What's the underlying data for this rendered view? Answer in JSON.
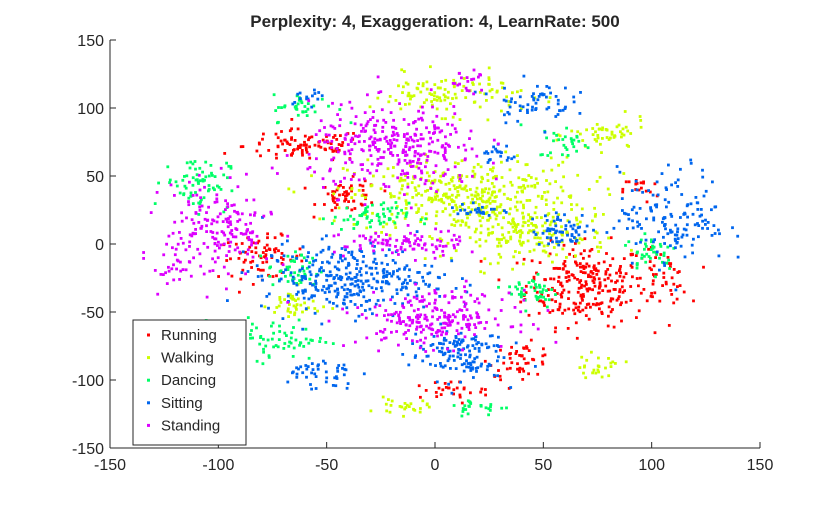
{
  "chart_data": {
    "type": "scatter",
    "title": "Perplexity: 4, Exaggeration: 4, LearnRate: 500",
    "xlabel": "",
    "ylabel": "",
    "xlim": [
      -150,
      150
    ],
    "ylim": [
      -150,
      150
    ],
    "xticks": [
      -150,
      -100,
      -50,
      0,
      50,
      100,
      150
    ],
    "yticks": [
      -150,
      -100,
      -50,
      0,
      50,
      100,
      150
    ],
    "xtick_labels": [
      "-150",
      "-100",
      "-50",
      "0",
      "50",
      "100",
      "150"
    ],
    "ytick_labels": [
      "-150",
      "-100",
      "-50",
      "0",
      "50",
      "100",
      "150"
    ],
    "grid": false,
    "legend_position": "bottom-left",
    "series": [
      {
        "name": "Running",
        "color": "#ff0000",
        "clusters": [
          {
            "cx": 70,
            "cy": -30,
            "rx": 28,
            "ry": 30,
            "n": 260
          },
          {
            "cx": -80,
            "cy": -10,
            "rx": 20,
            "ry": 15,
            "n": 70
          },
          {
            "cx": -60,
            "cy": 72,
            "rx": 28,
            "ry": 12,
            "n": 90
          },
          {
            "cx": -40,
            "cy": 35,
            "rx": 14,
            "ry": 12,
            "n": 55
          },
          {
            "cx": 40,
            "cy": -85,
            "rx": 15,
            "ry": 12,
            "n": 45
          },
          {
            "cx": 105,
            "cy": -25,
            "rx": 12,
            "ry": 20,
            "n": 40
          },
          {
            "cx": 5,
            "cy": -108,
            "rx": 25,
            "ry": 8,
            "n": 30
          },
          {
            "cx": 95,
            "cy": 40,
            "rx": 8,
            "ry": 10,
            "n": 18
          }
        ]
      },
      {
        "name": "Walking",
        "color": "#ccff00",
        "clusters": [
          {
            "cx": 15,
            "cy": 35,
            "rx": 55,
            "ry": 28,
            "n": 400
          },
          {
            "cx": 45,
            "cy": 5,
            "rx": 35,
            "ry": 18,
            "n": 150
          },
          {
            "cx": 5,
            "cy": 110,
            "rx": 35,
            "ry": 15,
            "n": 110
          },
          {
            "cx": 80,
            "cy": 80,
            "rx": 18,
            "ry": 12,
            "n": 50
          },
          {
            "cx": -65,
            "cy": -45,
            "rx": 12,
            "ry": 12,
            "n": 40
          },
          {
            "cx": -15,
            "cy": -120,
            "rx": 12,
            "ry": 6,
            "n": 25
          },
          {
            "cx": 75,
            "cy": -90,
            "rx": 12,
            "ry": 8,
            "n": 25
          },
          {
            "cx": -100,
            "cy": -75,
            "rx": 10,
            "ry": 8,
            "n": 20
          }
        ]
      },
      {
        "name": "Dancing",
        "color": "#00ff66",
        "clusters": [
          {
            "cx": -110,
            "cy": 45,
            "rx": 15,
            "ry": 20,
            "n": 70
          },
          {
            "cx": -30,
            "cy": 20,
            "rx": 18,
            "ry": 10,
            "n": 60
          },
          {
            "cx": -65,
            "cy": -20,
            "rx": 12,
            "ry": 14,
            "n": 45
          },
          {
            "cx": -75,
            "cy": -70,
            "rx": 25,
            "ry": 15,
            "n": 70
          },
          {
            "cx": 45,
            "cy": -35,
            "rx": 12,
            "ry": 12,
            "n": 45
          },
          {
            "cx": 100,
            "cy": -5,
            "rx": 12,
            "ry": 15,
            "n": 40
          },
          {
            "cx": -60,
            "cy": 100,
            "rx": 15,
            "ry": 10,
            "n": 35
          },
          {
            "cx": 60,
            "cy": 75,
            "rx": 12,
            "ry": 12,
            "n": 30
          },
          {
            "cx": 20,
            "cy": -120,
            "rx": 15,
            "ry": 6,
            "n": 25
          }
        ]
      },
      {
        "name": "Sitting",
        "color": "#0066ee",
        "clusters": [
          {
            "cx": -40,
            "cy": -25,
            "rx": 40,
            "ry": 25,
            "n": 320
          },
          {
            "cx": 10,
            "cy": -80,
            "rx": 22,
            "ry": 20,
            "n": 140
          },
          {
            "cx": 110,
            "cy": 20,
            "rx": 25,
            "ry": 35,
            "n": 150
          },
          {
            "cx": 60,
            "cy": 10,
            "rx": 15,
            "ry": 12,
            "n": 60
          },
          {
            "cx": 45,
            "cy": 105,
            "rx": 18,
            "ry": 15,
            "n": 60
          },
          {
            "cx": -55,
            "cy": -95,
            "rx": 18,
            "ry": 12,
            "n": 45
          },
          {
            "cx": 20,
            "cy": 25,
            "rx": 10,
            "ry": 6,
            "n": 25
          },
          {
            "cx": 30,
            "cy": 65,
            "rx": 8,
            "ry": 8,
            "n": 20
          },
          {
            "cx": -60,
            "cy": 110,
            "rx": 10,
            "ry": 6,
            "n": 15
          }
        ]
      },
      {
        "name": "Standing",
        "color": "#dd00ff",
        "clusters": [
          {
            "cx": -18,
            "cy": 70,
            "rx": 40,
            "ry": 32,
            "n": 320
          },
          {
            "cx": 0,
            "cy": -55,
            "rx": 35,
            "ry": 20,
            "n": 230
          },
          {
            "cx": -100,
            "cy": 10,
            "rx": 25,
            "ry": 35,
            "n": 180
          },
          {
            "cx": -15,
            "cy": 0,
            "rx": 28,
            "ry": 10,
            "n": 90
          },
          {
            "cx": 15,
            "cy": 120,
            "rx": 10,
            "ry": 8,
            "n": 20
          },
          {
            "cx": -120,
            "cy": -20,
            "rx": 8,
            "ry": 10,
            "n": 20
          }
        ]
      }
    ]
  }
}
